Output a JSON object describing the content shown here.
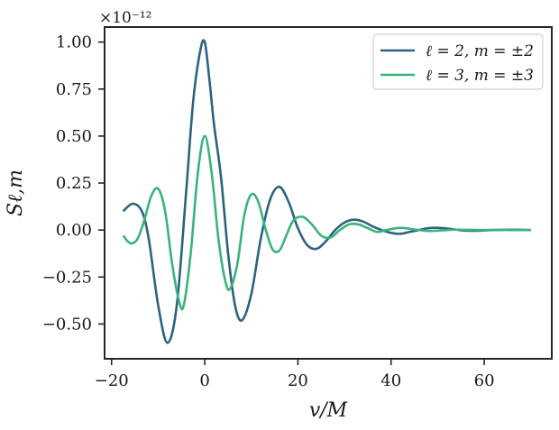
{
  "chart_data": {
    "type": "line",
    "xlabel": "v/M",
    "ylabel": "Sℓ,m",
    "offset_text": "×10⁻¹²",
    "xlim": [
      -21.5,
      74.5
    ],
    "ylim": [
      -0.685,
      1.08
    ],
    "xticks": [
      -20,
      0,
      20,
      40,
      60
    ],
    "xtick_labels": [
      "−20",
      "0",
      "20",
      "40",
      "60"
    ],
    "yticks": [
      -0.5,
      -0.25,
      0.0,
      0.25,
      0.5,
      0.75,
      1.0
    ],
    "ytick_labels": [
      "−0.50",
      "−0.25",
      "0.00",
      "0.25",
      "0.50",
      "0.75",
      "1.00"
    ],
    "legend_position": "upper right",
    "grid": false,
    "series": [
      {
        "name": "ℓ = 2, m = ±2",
        "color": "#2c6381",
        "x": [
          -17.5,
          -15.5,
          -13.5,
          -12,
          -10,
          -8,
          -6,
          -4,
          -2.5,
          -1,
          0,
          1,
          2,
          3.5,
          5,
          6.5,
          8,
          10,
          12,
          14,
          16,
          18,
          20,
          22,
          24,
          26,
          28,
          30,
          32,
          34,
          36,
          38,
          40,
          42,
          44,
          46,
          48,
          50,
          52,
          54,
          56,
          58,
          60,
          62,
          64,
          66,
          68,
          70
        ],
        "y": [
          0.1,
          0.14,
          0.1,
          -0.05,
          -0.4,
          -0.6,
          -0.4,
          0.2,
          0.68,
          0.95,
          1.0,
          0.8,
          0.56,
          0.28,
          -0.12,
          -0.4,
          -0.48,
          -0.34,
          -0.05,
          0.16,
          0.23,
          0.15,
          0.01,
          -0.08,
          -0.1,
          -0.06,
          0.0,
          0.04,
          0.055,
          0.045,
          0.02,
          0.0,
          -0.015,
          -0.02,
          -0.01,
          0.0,
          0.01,
          0.012,
          0.008,
          0.002,
          -0.003,
          -0.004,
          -0.002,
          0.0,
          0.001,
          0.002,
          0.001,
          0.0
        ]
      },
      {
        "name": "ℓ = 3, m = ±3",
        "color": "#3bb37c",
        "x": [
          -17.5,
          -16,
          -14.5,
          -13,
          -11.5,
          -10,
          -8.5,
          -7,
          -5.5,
          -4.5,
          -3,
          -1.5,
          0,
          1.5,
          3,
          4.5,
          5.5,
          7,
          8.5,
          10,
          11.5,
          13,
          14.5,
          16,
          17.5,
          19,
          21,
          23,
          25,
          27,
          29,
          31,
          33,
          35,
          37,
          39,
          42,
          45,
          48,
          51,
          54,
          57,
          60,
          63,
          66,
          70
        ],
        "y": [
          -0.03,
          -0.07,
          -0.05,
          0.05,
          0.18,
          0.22,
          0.1,
          -0.18,
          -0.38,
          -0.4,
          -0.12,
          0.3,
          0.5,
          0.3,
          -0.06,
          -0.28,
          -0.31,
          -0.18,
          0.08,
          0.19,
          0.15,
          0.01,
          -0.1,
          -0.11,
          -0.03,
          0.05,
          0.07,
          0.03,
          -0.03,
          -0.04,
          0.0,
          0.03,
          0.03,
          0.01,
          -0.01,
          0.0,
          0.012,
          0.003,
          -0.005,
          -0.002,
          0.002,
          0.001,
          0.0,
          0.001,
          0.0,
          0.0
        ]
      }
    ]
  }
}
